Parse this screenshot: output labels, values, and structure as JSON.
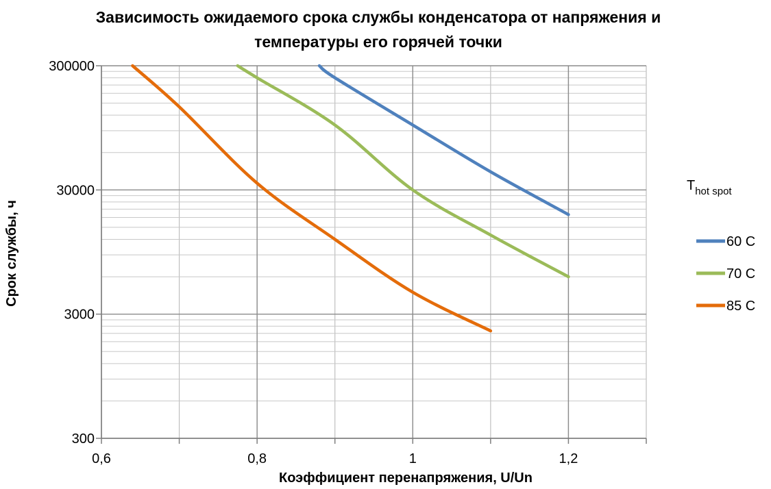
{
  "chart_data": {
    "type": "line",
    "title": "Зависимость ожидаемого срока службы конденсатора от напряжения и температуры его горячей точки",
    "xlabel": "Коэффициент перенапряжения, U/Un",
    "ylabel": "Срок службы, ч",
    "xlim": [
      0.6,
      1.3
    ],
    "ylim": [
      300,
      300000
    ],
    "y_scale": "log",
    "x_ticks": [
      "0,6",
      "0,8",
      "1",
      "1,2"
    ],
    "x_tick_values": [
      0.6,
      0.8,
      1.0,
      1.2
    ],
    "y_ticks": [
      "300",
      "3000",
      "30000",
      "300000"
    ],
    "y_tick_values": [
      300,
      3000,
      30000,
      300000
    ],
    "grid": true,
    "legend_title": "T",
    "legend_title_sub": "hot spot",
    "legend_position": "right",
    "series": [
      {
        "name": "60 C",
        "color": "#4f81bd",
        "x": [
          0.88,
          0.9,
          1.0,
          1.1,
          1.2
        ],
        "y": [
          300000,
          240000,
          100000,
          42000,
          19000
        ]
      },
      {
        "name": "70 C",
        "color": "#9bbb59",
        "x": [
          0.775,
          0.8,
          0.9,
          1.0,
          1.1,
          1.2
        ],
        "y": [
          300000,
          240000,
          100000,
          30000,
          13000,
          6000
        ]
      },
      {
        "name": "85 C",
        "color": "#e46c0a",
        "x": [
          0.64,
          0.7,
          0.8,
          0.9,
          1.0,
          1.1
        ],
        "y": [
          300000,
          140000,
          34000,
          12000,
          4500,
          2200
        ]
      }
    ]
  }
}
